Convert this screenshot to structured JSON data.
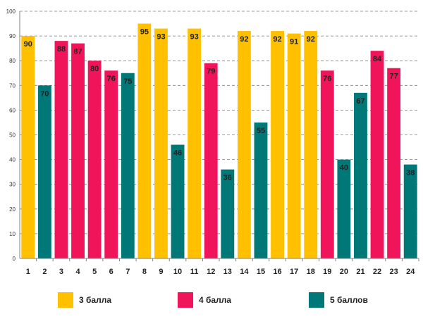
{
  "chart_data": {
    "type": "bar",
    "title": "",
    "xlabel": "",
    "ylabel": "",
    "ylim": [
      0,
      100
    ],
    "yticks": [
      0,
      10,
      20,
      30,
      40,
      50,
      60,
      70,
      80,
      90,
      100
    ],
    "grid": true,
    "categories": [
      "1",
      "2",
      "3",
      "4",
      "5",
      "6",
      "7",
      "8",
      "9",
      "10",
      "11",
      "12",
      "13",
      "14",
      "15",
      "16",
      "17",
      "18",
      "19",
      "20",
      "21",
      "22",
      "23",
      "24"
    ],
    "values": [
      90,
      70,
      88,
      87,
      80,
      76,
      75,
      95,
      93,
      46,
      93,
      79,
      36,
      92,
      55,
      92,
      91,
      92,
      76,
      40,
      67,
      84,
      77,
      38
    ],
    "groups": [
      0,
      2,
      1,
      1,
      1,
      1,
      2,
      0,
      0,
      2,
      0,
      1,
      2,
      0,
      2,
      0,
      0,
      0,
      1,
      2,
      2,
      1,
      1,
      2
    ],
    "legend": [
      {
        "label": "3 балла",
        "color": "#FFC000"
      },
      {
        "label": "4 балла",
        "color": "#F0145A"
      },
      {
        "label": "5 баллов",
        "color": "#007878"
      }
    ]
  }
}
